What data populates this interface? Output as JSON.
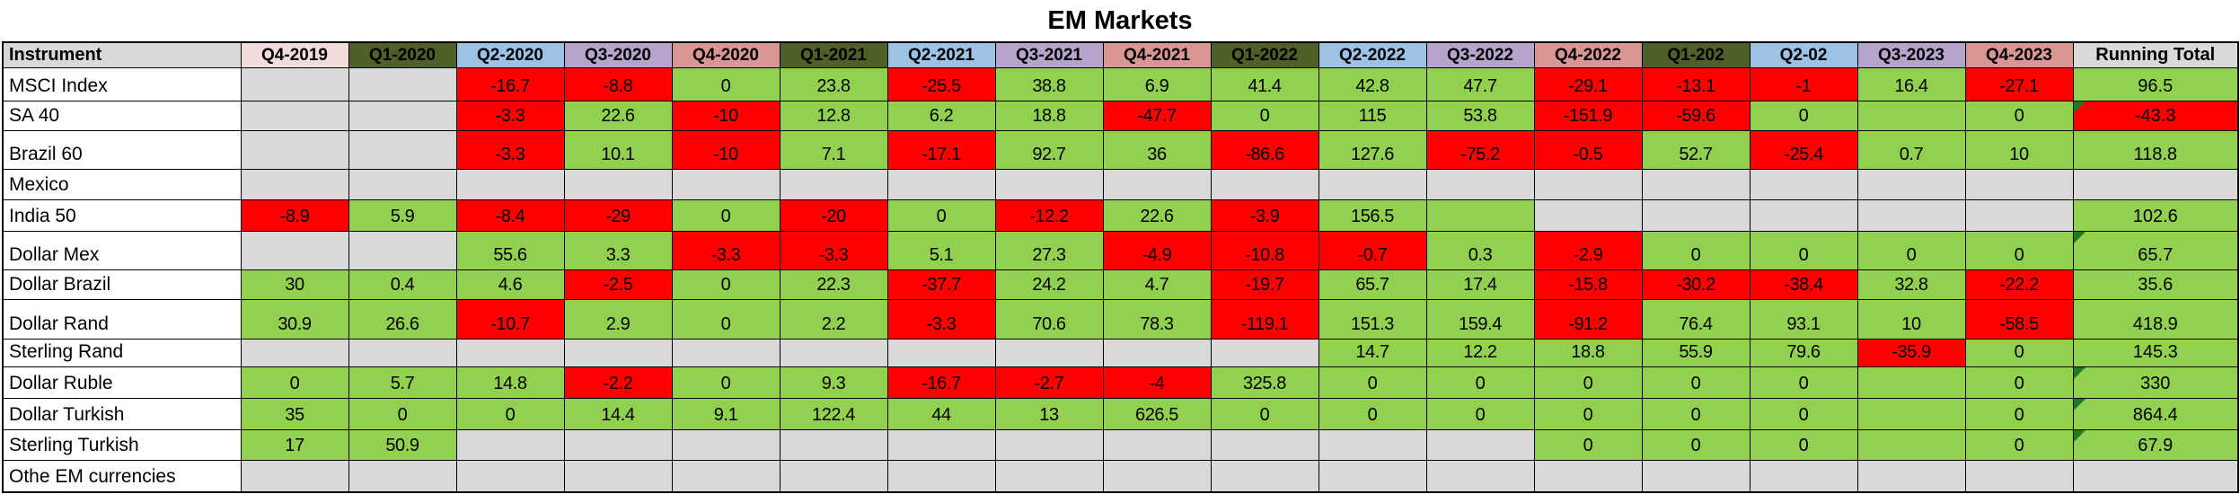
{
  "title": "EM Markets",
  "colors": {
    "green": "#92D050",
    "red": "#FF0000",
    "gray": "#D9D9D9",
    "white": "#FFFFFF",
    "pink": "#F2DCDB",
    "olive": "#4F5F28",
    "blue": "#9CC2E5",
    "purple": "#B6A4CC",
    "rose": "#D99694",
    "header_gray": "#D9D9D9",
    "flag_green": "#1E7B21"
  },
  "table": {
    "header": {
      "instrument": "Instrument",
      "quarters": [
        "Q4-2019",
        "Q1-2020",
        "Q2-2020",
        "Q3-2020",
        "Q4-2020",
        "Q1-2021",
        "Q2-2021",
        "Q3-2021",
        "Q4-2021",
        "Q1-2022",
        "Q2-2022",
        "Q3-2022",
        "Q4-2022",
        "Q1-202",
        "Q2-02",
        "Q3-2023",
        "Q4-2023"
      ],
      "running_total": "Running Total"
    },
    "header_styles": [
      "pink",
      "olive",
      "blue",
      "purple",
      "rose",
      "olive",
      "blue",
      "purple",
      "rose",
      "olive",
      "blue",
      "purple",
      "rose",
      "olive",
      "blue",
      "purple",
      "rose"
    ],
    "rows": [
      {
        "name": "MSCI Index",
        "cells": [
          {
            "v": "",
            "s": "gray"
          },
          {
            "v": "",
            "s": "gray"
          },
          {
            "v": "-16.7",
            "s": "red"
          },
          {
            "v": "-8.8",
            "s": "red"
          },
          {
            "v": "0",
            "s": "green"
          },
          {
            "v": "23.8",
            "s": "green"
          },
          {
            "v": "-25.5",
            "s": "red"
          },
          {
            "v": "38.8",
            "s": "green"
          },
          {
            "v": "6.9",
            "s": "green"
          },
          {
            "v": "41.4",
            "s": "green"
          },
          {
            "v": "42.8",
            "s": "green"
          },
          {
            "v": "47.7",
            "s": "green"
          },
          {
            "v": "-29.1",
            "s": "red"
          },
          {
            "v": "-13.1",
            "s": "red"
          },
          {
            "v": "-1",
            "s": "red"
          },
          {
            "v": "16.4",
            "s": "green"
          },
          {
            "v": "-27.1",
            "s": "red"
          }
        ],
        "total": {
          "v": "96.5",
          "s": "green",
          "flag": false
        }
      },
      {
        "name": "SA 40",
        "cells": [
          {
            "v": "",
            "s": "gray"
          },
          {
            "v": "",
            "s": "gray"
          },
          {
            "v": "-3.3",
            "s": "red"
          },
          {
            "v": "22.6",
            "s": "green"
          },
          {
            "v": "-10",
            "s": "red"
          },
          {
            "v": "12.8",
            "s": "green"
          },
          {
            "v": "6.2",
            "s": "green"
          },
          {
            "v": "18.8",
            "s": "green"
          },
          {
            "v": "-47.7",
            "s": "red"
          },
          {
            "v": "0",
            "s": "green"
          },
          {
            "v": "115",
            "s": "green"
          },
          {
            "v": "53.8",
            "s": "green"
          },
          {
            "v": "-151.9",
            "s": "red"
          },
          {
            "v": "-59.6",
            "s": "red"
          },
          {
            "v": "0",
            "s": "green"
          },
          {
            "v": "",
            "s": "green"
          },
          {
            "v": "0",
            "s": "green"
          }
        ],
        "total": {
          "v": "-43.3",
          "s": "red",
          "flag": true
        }
      },
      {
        "name": "Brazil 60",
        "cells": [
          {
            "v": "",
            "s": "gray"
          },
          {
            "v": "",
            "s": "gray"
          },
          {
            "v": "-3.3",
            "s": "red"
          },
          {
            "v": "10.1",
            "s": "green"
          },
          {
            "v": "-10",
            "s": "red"
          },
          {
            "v": "7.1",
            "s": "green"
          },
          {
            "v": "-17.1",
            "s": "red"
          },
          {
            "v": "92.7",
            "s": "green"
          },
          {
            "v": "36",
            "s": "green"
          },
          {
            "v": "-86.6",
            "s": "red"
          },
          {
            "v": "127.6",
            "s": "green"
          },
          {
            "v": "-75.2",
            "s": "red"
          },
          {
            "v": "-0.5",
            "s": "red"
          },
          {
            "v": "52.7",
            "s": "green"
          },
          {
            "v": "-25.4",
            "s": "red"
          },
          {
            "v": "0.7",
            "s": "green"
          },
          {
            "v": "10",
            "s": "green"
          }
        ],
        "total": {
          "v": "118.8",
          "s": "green",
          "flag": false
        }
      },
      {
        "name": "Mexico",
        "cells": [
          {
            "v": "",
            "s": "gray"
          },
          {
            "v": "",
            "s": "gray"
          },
          {
            "v": "",
            "s": "gray"
          },
          {
            "v": "",
            "s": "gray"
          },
          {
            "v": "",
            "s": "gray"
          },
          {
            "v": "",
            "s": "gray"
          },
          {
            "v": "",
            "s": "gray"
          },
          {
            "v": "",
            "s": "gray"
          },
          {
            "v": "",
            "s": "gray"
          },
          {
            "v": "",
            "s": "gray"
          },
          {
            "v": "",
            "s": "gray"
          },
          {
            "v": "",
            "s": "gray"
          },
          {
            "v": "",
            "s": "gray"
          },
          {
            "v": "",
            "s": "gray"
          },
          {
            "v": "",
            "s": "gray"
          },
          {
            "v": "",
            "s": "gray"
          },
          {
            "v": "",
            "s": "gray"
          }
        ],
        "total": {
          "v": "",
          "s": "gray",
          "flag": false
        }
      },
      {
        "name": "India 50",
        "cells": [
          {
            "v": "-8.9",
            "s": "red"
          },
          {
            "v": "5.9",
            "s": "green"
          },
          {
            "v": "-8.4",
            "s": "red"
          },
          {
            "v": "-29",
            "s": "red"
          },
          {
            "v": "0",
            "s": "green"
          },
          {
            "v": "-20",
            "s": "red"
          },
          {
            "v": "0",
            "s": "green"
          },
          {
            "v": "-12.2",
            "s": "red"
          },
          {
            "v": "22.6",
            "s": "green"
          },
          {
            "v": "-3.9",
            "s": "red"
          },
          {
            "v": "156.5",
            "s": "green"
          },
          {
            "v": "",
            "s": "green"
          },
          {
            "v": "",
            "s": "gray"
          },
          {
            "v": "",
            "s": "gray"
          },
          {
            "v": "",
            "s": "gray"
          },
          {
            "v": "",
            "s": "gray"
          },
          {
            "v": "",
            "s": "gray"
          }
        ],
        "total": {
          "v": "102.6",
          "s": "green",
          "flag": false
        }
      },
      {
        "name": "Dollar Mex",
        "cells": [
          {
            "v": "",
            "s": "gray"
          },
          {
            "v": "",
            "s": "gray"
          },
          {
            "v": "55.6",
            "s": "green"
          },
          {
            "v": "3.3",
            "s": "green"
          },
          {
            "v": "-3.3",
            "s": "red"
          },
          {
            "v": "-3.3",
            "s": "red"
          },
          {
            "v": "5.1",
            "s": "green"
          },
          {
            "v": "27.3",
            "s": "green"
          },
          {
            "v": "-4.9",
            "s": "red"
          },
          {
            "v": "-10.8",
            "s": "red"
          },
          {
            "v": "-0.7",
            "s": "red"
          },
          {
            "v": "0.3",
            "s": "green"
          },
          {
            "v": "-2.9",
            "s": "red"
          },
          {
            "v": "0",
            "s": "green"
          },
          {
            "v": "0",
            "s": "green"
          },
          {
            "v": "0",
            "s": "green"
          },
          {
            "v": "0",
            "s": "green"
          }
        ],
        "total": {
          "v": "65.7",
          "s": "green",
          "flag": true
        }
      },
      {
        "name": "Dollar Brazil",
        "cells": [
          {
            "v": "30",
            "s": "green"
          },
          {
            "v": "0.4",
            "s": "green"
          },
          {
            "v": "4.6",
            "s": "green"
          },
          {
            "v": "-2.5",
            "s": "red"
          },
          {
            "v": "0",
            "s": "green"
          },
          {
            "v": "22.3",
            "s": "green"
          },
          {
            "v": "-37.7",
            "s": "red"
          },
          {
            "v": "24.2",
            "s": "green"
          },
          {
            "v": "4.7",
            "s": "green"
          },
          {
            "v": "-19.7",
            "s": "red"
          },
          {
            "v": "65.7",
            "s": "green"
          },
          {
            "v": "17.4",
            "s": "green"
          },
          {
            "v": "-15.8",
            "s": "red"
          },
          {
            "v": "-30.2",
            "s": "red"
          },
          {
            "v": "-38.4",
            "s": "red"
          },
          {
            "v": "32.8",
            "s": "green"
          },
          {
            "v": "-22.2",
            "s": "red"
          }
        ],
        "total": {
          "v": "35.6",
          "s": "green",
          "flag": false
        }
      },
      {
        "name": "Dollar Rand",
        "cells": [
          {
            "v": "30.9",
            "s": "green"
          },
          {
            "v": "26.6",
            "s": "green"
          },
          {
            "v": "-10.7",
            "s": "red"
          },
          {
            "v": "2.9",
            "s": "green"
          },
          {
            "v": "0",
            "s": "green"
          },
          {
            "v": "2.2",
            "s": "green"
          },
          {
            "v": "-3.3",
            "s": "red"
          },
          {
            "v": "70.6",
            "s": "green"
          },
          {
            "v": "78.3",
            "s": "green"
          },
          {
            "v": "-119.1",
            "s": "red"
          },
          {
            "v": "151.3",
            "s": "green"
          },
          {
            "v": "159.4",
            "s": "green"
          },
          {
            "v": "-91.2",
            "s": "red"
          },
          {
            "v": "76.4",
            "s": "green"
          },
          {
            "v": "93.1",
            "s": "green"
          },
          {
            "v": "10",
            "s": "green"
          },
          {
            "v": "-58.5",
            "s": "red"
          }
        ],
        "total": {
          "v": "418.9",
          "s": "green",
          "flag": false
        }
      },
      {
        "name": "Sterling Rand",
        "cells": [
          {
            "v": "",
            "s": "gray"
          },
          {
            "v": "",
            "s": "gray"
          },
          {
            "v": "",
            "s": "gray"
          },
          {
            "v": "",
            "s": "gray"
          },
          {
            "v": "",
            "s": "gray"
          },
          {
            "v": "",
            "s": "gray"
          },
          {
            "v": "",
            "s": "gray"
          },
          {
            "v": "",
            "s": "gray"
          },
          {
            "v": "",
            "s": "gray"
          },
          {
            "v": "",
            "s": "gray"
          },
          {
            "v": "14.7",
            "s": "green"
          },
          {
            "v": "12.2",
            "s": "green"
          },
          {
            "v": "18.8",
            "s": "green"
          },
          {
            "v": "55.9",
            "s": "green"
          },
          {
            "v": "79.6",
            "s": "green"
          },
          {
            "v": "-35.9",
            "s": "red"
          },
          {
            "v": "0",
            "s": "green"
          }
        ],
        "total": {
          "v": "145.3",
          "s": "green",
          "flag": false
        }
      },
      {
        "name": "Dollar Ruble",
        "cells": [
          {
            "v": "0",
            "s": "green"
          },
          {
            "v": "5.7",
            "s": "green"
          },
          {
            "v": "14.8",
            "s": "green"
          },
          {
            "v": "-2.2",
            "s": "red"
          },
          {
            "v": "0",
            "s": "green"
          },
          {
            "v": "9.3",
            "s": "green"
          },
          {
            "v": "-16.7",
            "s": "red"
          },
          {
            "v": "-2.7",
            "s": "red"
          },
          {
            "v": "-4",
            "s": "red"
          },
          {
            "v": "325.8",
            "s": "green"
          },
          {
            "v": "0",
            "s": "green"
          },
          {
            "v": "0",
            "s": "green"
          },
          {
            "v": "0",
            "s": "green"
          },
          {
            "v": "0",
            "s": "green"
          },
          {
            "v": "0",
            "s": "green"
          },
          {
            "v": "",
            "s": "green"
          },
          {
            "v": "0",
            "s": "green"
          }
        ],
        "total": {
          "v": "330",
          "s": "green",
          "flag": true
        }
      },
      {
        "name": "Dollar Turkish",
        "cells": [
          {
            "v": "35",
            "s": "green"
          },
          {
            "v": "0",
            "s": "green"
          },
          {
            "v": "0",
            "s": "green"
          },
          {
            "v": "14.4",
            "s": "green"
          },
          {
            "v": "9.1",
            "s": "green"
          },
          {
            "v": "122.4",
            "s": "green"
          },
          {
            "v": "44",
            "s": "green"
          },
          {
            "v": "13",
            "s": "green"
          },
          {
            "v": "626.5",
            "s": "green"
          },
          {
            "v": "0",
            "s": "green"
          },
          {
            "v": "0",
            "s": "green"
          },
          {
            "v": "0",
            "s": "green"
          },
          {
            "v": "0",
            "s": "green"
          },
          {
            "v": "0",
            "s": "green"
          },
          {
            "v": "0",
            "s": "green"
          },
          {
            "v": "",
            "s": "green"
          },
          {
            "v": "0",
            "s": "green"
          }
        ],
        "total": {
          "v": "864.4",
          "s": "green",
          "flag": true
        }
      },
      {
        "name": "Sterling Turkish",
        "cells": [
          {
            "v": "17",
            "s": "green"
          },
          {
            "v": "50.9",
            "s": "green"
          },
          {
            "v": "",
            "s": "gray"
          },
          {
            "v": "",
            "s": "gray"
          },
          {
            "v": "",
            "s": "gray"
          },
          {
            "v": "",
            "s": "gray"
          },
          {
            "v": "",
            "s": "gray"
          },
          {
            "v": "",
            "s": "gray"
          },
          {
            "v": "",
            "s": "gray"
          },
          {
            "v": "",
            "s": "gray"
          },
          {
            "v": "",
            "s": "gray"
          },
          {
            "v": "",
            "s": "gray"
          },
          {
            "v": "0",
            "s": "green"
          },
          {
            "v": "0",
            "s": "green"
          },
          {
            "v": "0",
            "s": "green"
          },
          {
            "v": "",
            "s": "green"
          },
          {
            "v": "0",
            "s": "green"
          }
        ],
        "total": {
          "v": "67.9",
          "s": "green",
          "flag": true
        }
      },
      {
        "name": "Othe EM currencies",
        "cells": [
          {
            "v": "",
            "s": "gray"
          },
          {
            "v": "",
            "s": "gray"
          },
          {
            "v": "",
            "s": "gray"
          },
          {
            "v": "",
            "s": "gray"
          },
          {
            "v": "",
            "s": "gray"
          },
          {
            "v": "",
            "s": "gray"
          },
          {
            "v": "",
            "s": "gray"
          },
          {
            "v": "",
            "s": "gray"
          },
          {
            "v": "",
            "s": "gray"
          },
          {
            "v": "",
            "s": "gray"
          },
          {
            "v": "",
            "s": "gray"
          },
          {
            "v": "",
            "s": "gray"
          },
          {
            "v": "",
            "s": "gray"
          },
          {
            "v": "",
            "s": "gray"
          },
          {
            "v": "",
            "s": "gray"
          },
          {
            "v": "",
            "s": "gray"
          },
          {
            "v": "",
            "s": "gray"
          }
        ],
        "total": {
          "v": "",
          "s": "gray",
          "flag": false
        }
      }
    ]
  }
}
